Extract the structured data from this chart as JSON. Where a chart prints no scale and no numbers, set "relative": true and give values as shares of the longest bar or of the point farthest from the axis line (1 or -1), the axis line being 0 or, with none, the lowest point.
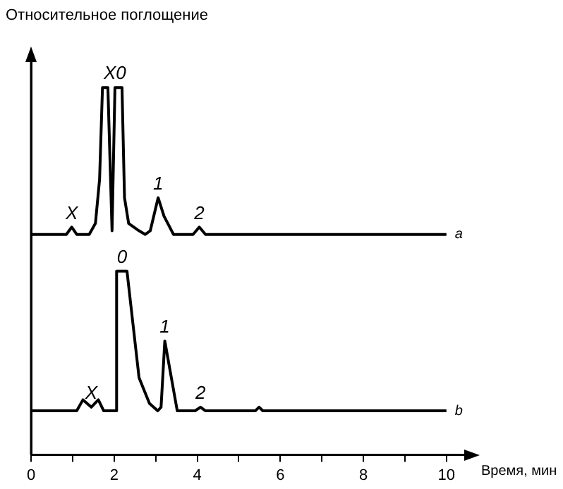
{
  "chart_data": {
    "type": "line",
    "relative": true,
    "xlabel": "Время, мин",
    "ylabel": "Относительное поглощение",
    "xlim": [
      0,
      10.7
    ],
    "xticks": [
      0,
      {
        "value": 1,
        "label": null
      },
      2,
      {
        "value": 3,
        "label": null
      },
      4,
      {
        "value": 5,
        "label": null
      },
      6,
      {
        "value": 7,
        "label": null
      },
      8,
      {
        "value": 9,
        "label": null
      },
      10
    ],
    "grid": false,
    "legend": false,
    "marker": "none",
    "line_style": "solid",
    "series": [
      {
        "name": "a",
        "color": "#000000",
        "x": [
          0,
          0.85,
          0.98,
          1.1,
          1.4,
          1.55,
          1.65,
          1.72,
          1.85,
          1.95,
          2.02,
          2.19,
          2.25,
          2.35,
          2.6,
          2.75,
          2.87,
          3.06,
          3.2,
          3.43,
          3.9,
          4.05,
          4.2,
          10
        ],
        "values": [
          0.6,
          0.6,
          0.62,
          0.6,
          0.6,
          0.63,
          0.75,
          1,
          1,
          0.61,
          1,
          1,
          0.7,
          0.63,
          0.61,
          0.6,
          0.61,
          0.7,
          0.65,
          0.6,
          0.6,
          0.62,
          0.6,
          0.6
        ]
      },
      {
        "name": "b",
        "color": "#000000",
        "x": [
          0,
          1.1,
          1.25,
          1.45,
          1.62,
          1.75,
          2.04,
          2.06,
          2.31,
          2.45,
          2.6,
          2.85,
          3.05,
          3.13,
          3.22,
          3.52,
          3.95,
          4.08,
          4.2,
          5.4,
          5.49,
          5.58,
          10
        ],
        "values": [
          0.12,
          0.12,
          0.15,
          0.13,
          0.15,
          0.12,
          0.12,
          0.5,
          0.5,
          0.36,
          0.21,
          0.14,
          0.12,
          0.13,
          0.31,
          0.12,
          0.12,
          0.13,
          0.12,
          0.12,
          0.13,
          0.12,
          0.12
        ]
      }
    ],
    "annotations": [
      {
        "text": "X",
        "x": 0.98,
        "y": 0.62
      },
      {
        "text": "X0",
        "x": 1.85,
        "y": 1
      },
      {
        "text": "1",
        "x": 3.06,
        "y": 0.7
      },
      {
        "text": "2",
        "x": 4.05,
        "y": 0.62
      },
      {
        "text": "0",
        "x": 2.19,
        "y": 0.5
      },
      {
        "text": "1",
        "x": 3.22,
        "y": 0.31
      },
      {
        "text": "2",
        "x": 4.08,
        "y": 0.13
      },
      {
        "text": "X",
        "x": 1.45,
        "y": 0.13
      }
    ]
  }
}
